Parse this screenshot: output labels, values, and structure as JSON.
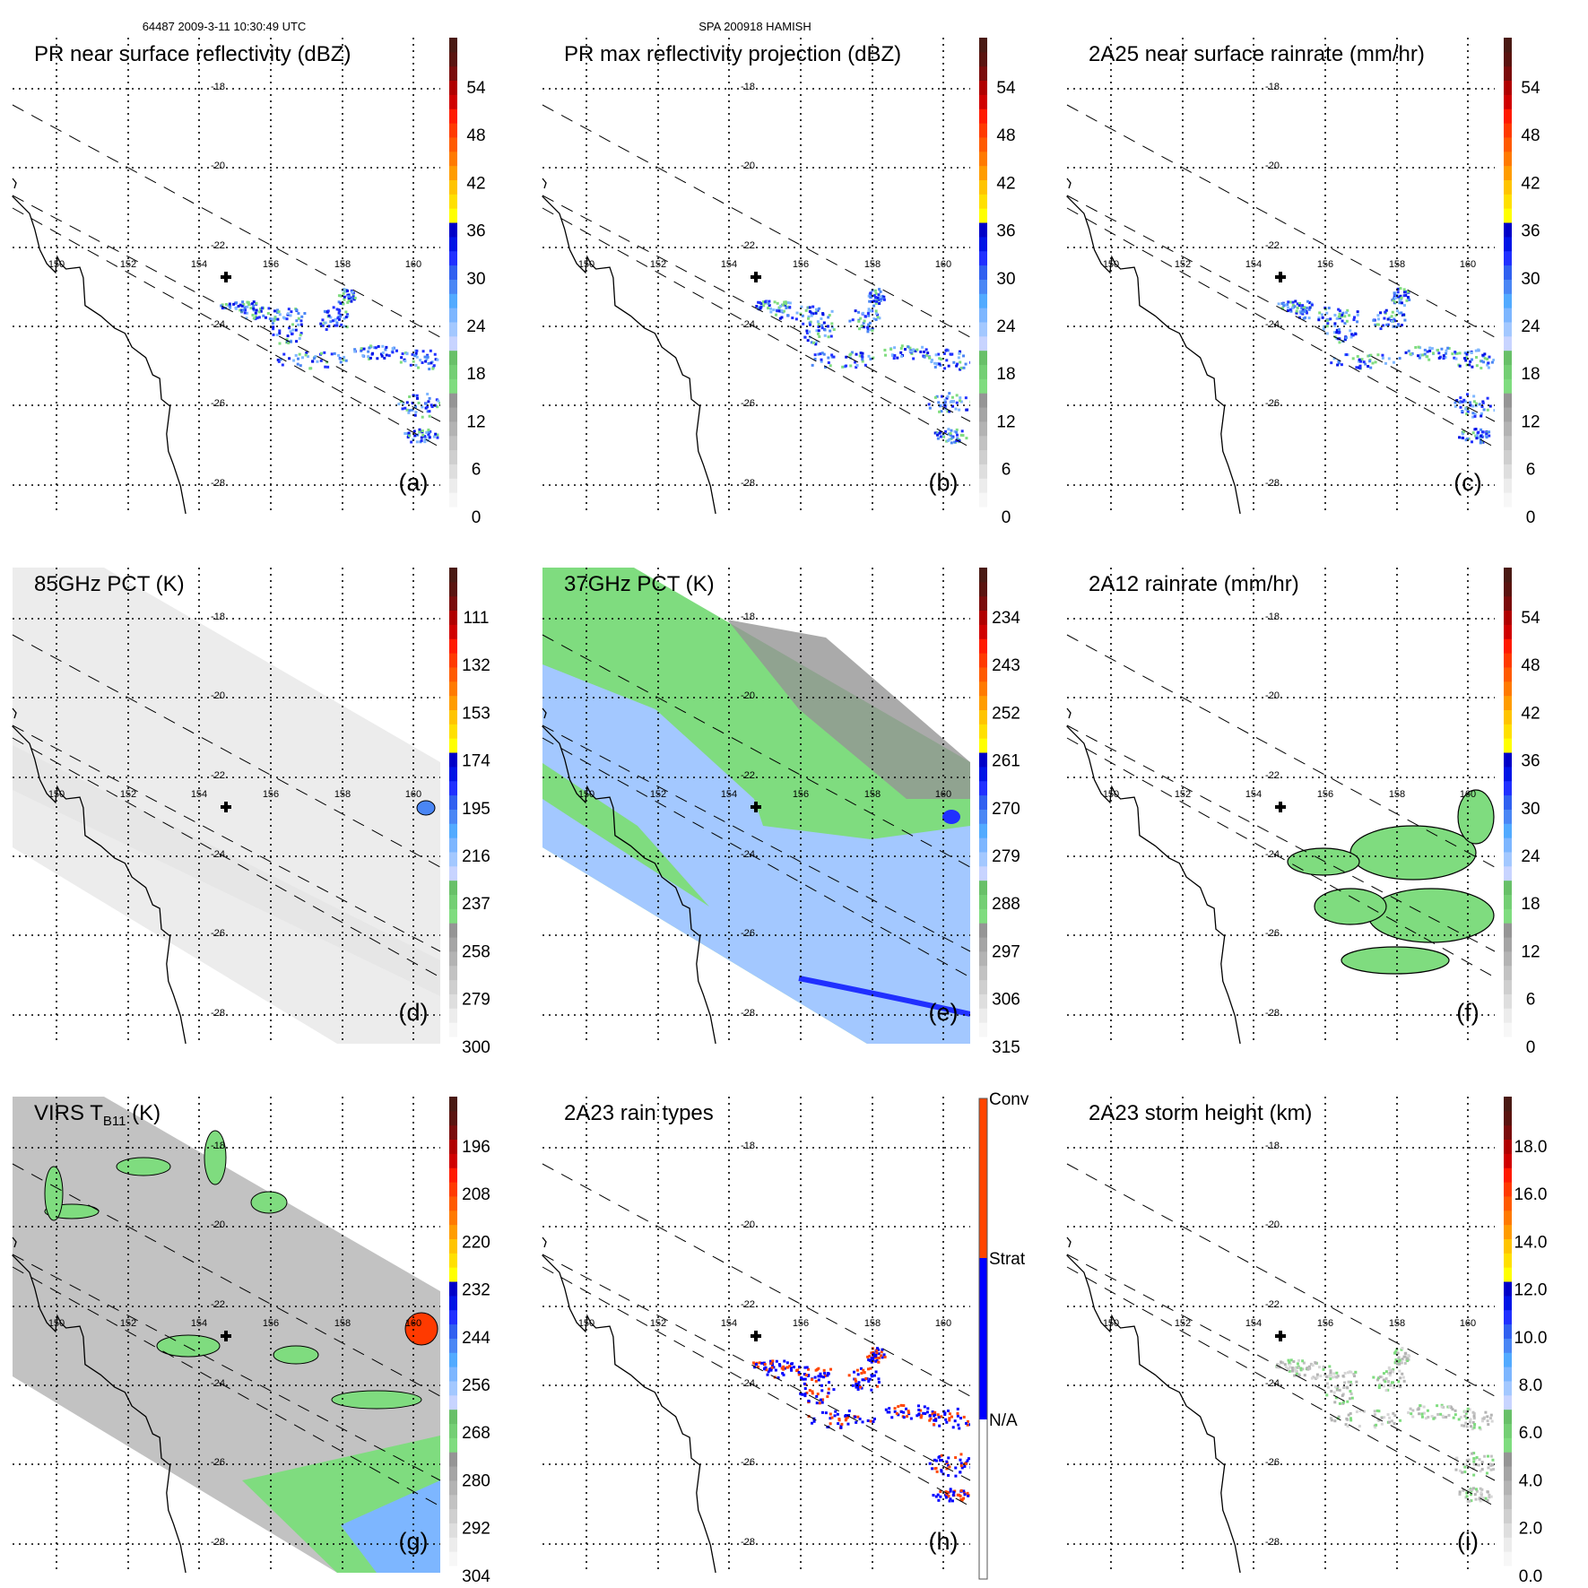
{
  "header": {
    "left": "64487 2009-3-11 10:30:49 UTC",
    "center": "SPA 200918 HAMISH"
  },
  "map": {
    "lat_labels": [
      "-18",
      "-20",
      "-22",
      "-24",
      "-26",
      "-28"
    ],
    "lon_labels": [
      "150",
      "152",
      "154",
      "156",
      "158",
      "160"
    ]
  },
  "colors": {
    "palette": [
      "#f7f7f7",
      "#ececec",
      "#dedede",
      "#cfcfcf",
      "#c2c2c2",
      "#b3b3b3",
      "#a5a5a5",
      "#959595",
      "#7fdc7f",
      "#74cf74",
      "#68c068",
      "#c8d4ff",
      "#a3c8ff",
      "#7db6ff",
      "#52aaff",
      "#4a86f5",
      "#3060f0",
      "#2030ff",
      "#0014e6",
      "#0000c8",
      "#ffff00",
      "#ffe000",
      "#ffc400",
      "#ff9c00",
      "#ff7a00",
      "#ff5a00",
      "#ff3a00",
      "#ff1a00",
      "#d00000",
      "#b00000",
      "#7a0c0c",
      "#5a1410",
      "#4a1a14"
    ],
    "conv": "#ff4500",
    "strat": "#0000ff"
  },
  "panels": [
    {
      "title": "PR near surface reflectivity (dBZ)",
      "letter": "(a)",
      "ticks": [
        "54",
        "48",
        "42",
        "36",
        "30",
        "24",
        "18",
        "12",
        "6",
        "0"
      ]
    },
    {
      "title": "PR max reflectivity projection (dBZ)",
      "letter": "(b)",
      "ticks": [
        "54",
        "48",
        "42",
        "36",
        "30",
        "24",
        "18",
        "12",
        "6",
        "0"
      ]
    },
    {
      "title": "2A25 near surface rainrate (mm/hr)",
      "letter": "(c)",
      "ticks": [
        "54",
        "48",
        "42",
        "36",
        "30",
        "24",
        "18",
        "12",
        "6",
        "0"
      ]
    },
    {
      "title": "85GHz PCT (K)",
      "letter": "(d)",
      "ticks": [
        "111",
        "132",
        "153",
        "174",
        "195",
        "216",
        "237",
        "258",
        "279",
        "300"
      ]
    },
    {
      "title": "37GHz PCT (K)",
      "letter": "(e)",
      "ticks": [
        "234",
        "243",
        "252",
        "261",
        "270",
        "279",
        "288",
        "297",
        "306",
        "315"
      ]
    },
    {
      "title": "2A12 rainrate (mm/hr)",
      "letter": "(f)",
      "ticks": [
        "54",
        "48",
        "42",
        "36",
        "30",
        "24",
        "18",
        "12",
        "6",
        "0"
      ]
    },
    {
      "title": "VIRS T",
      "title_sub": "B11",
      "title_tail": " (K)",
      "letter": "(g)",
      "ticks": [
        "196",
        "208",
        "220",
        "232",
        "244",
        "256",
        "268",
        "280",
        "292",
        "304"
      ]
    },
    {
      "title": "2A23 rain types",
      "letter": "(h)",
      "ticks": [
        "Conv",
        "Strat",
        "N/A"
      ]
    },
    {
      "title": "2A23 storm height (km)",
      "letter": "(i)",
      "ticks": [
        "18.0",
        "16.0",
        "14.0",
        "12.0",
        "10.0",
        "8.0",
        "6.0",
        "4.0",
        "2.0",
        "0.0"
      ]
    }
  ]
}
